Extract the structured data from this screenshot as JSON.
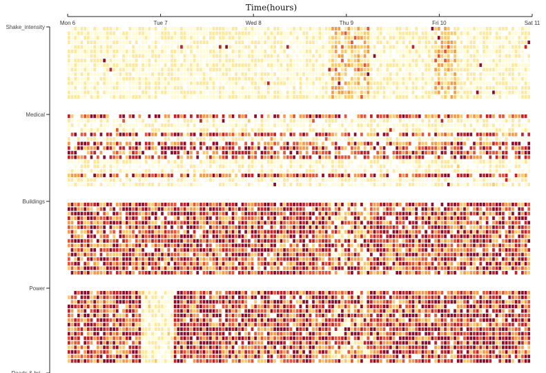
{
  "chart_data": {
    "type": "heatmap",
    "title": "Time(hours)",
    "x_ticks": [
      "Mon 6",
      "Tue 7",
      "Wed 8",
      "Thu 9",
      "Fri 10",
      "Sat 11"
    ],
    "categories": [
      "Shake_intensity",
      "Medical",
      "Buildings",
      "Power",
      "Roads & bridges"
    ],
    "cut_label": "Roads & bri...",
    "grid": false,
    "color_scale": [
      "#fffbd6",
      "#fde8a0",
      "#f9c96a",
      "#f39c4e",
      "#e6553a",
      "#c1232b",
      "#8b0d2b"
    ],
    "blocks": [
      {
        "name": "Shake_intensity",
        "rows": 16,
        "base_level": 0.05,
        "sparsity": 0.12,
        "notes": "mostly pale; denser column band Wed 8 ~20:00 to Thu 9 ~06:00 and Fri ~00:00 to ~04:00"
      },
      {
        "name": "Medical",
        "rows": 16,
        "base_level": 0.25,
        "sparsity": 0.25,
        "notes": "alternating strong and pale rows"
      },
      {
        "name": "Buildings",
        "rows": 16,
        "base_level": 0.5,
        "sparsity": 0.1,
        "notes": "dense mixed intensity"
      },
      {
        "name": "Power",
        "rows": 16,
        "base_level": 0.55,
        "sparsity": 0.08,
        "notes": "dense mixed intensity, pale column band around Tue 7 early hours"
      }
    ]
  }
}
